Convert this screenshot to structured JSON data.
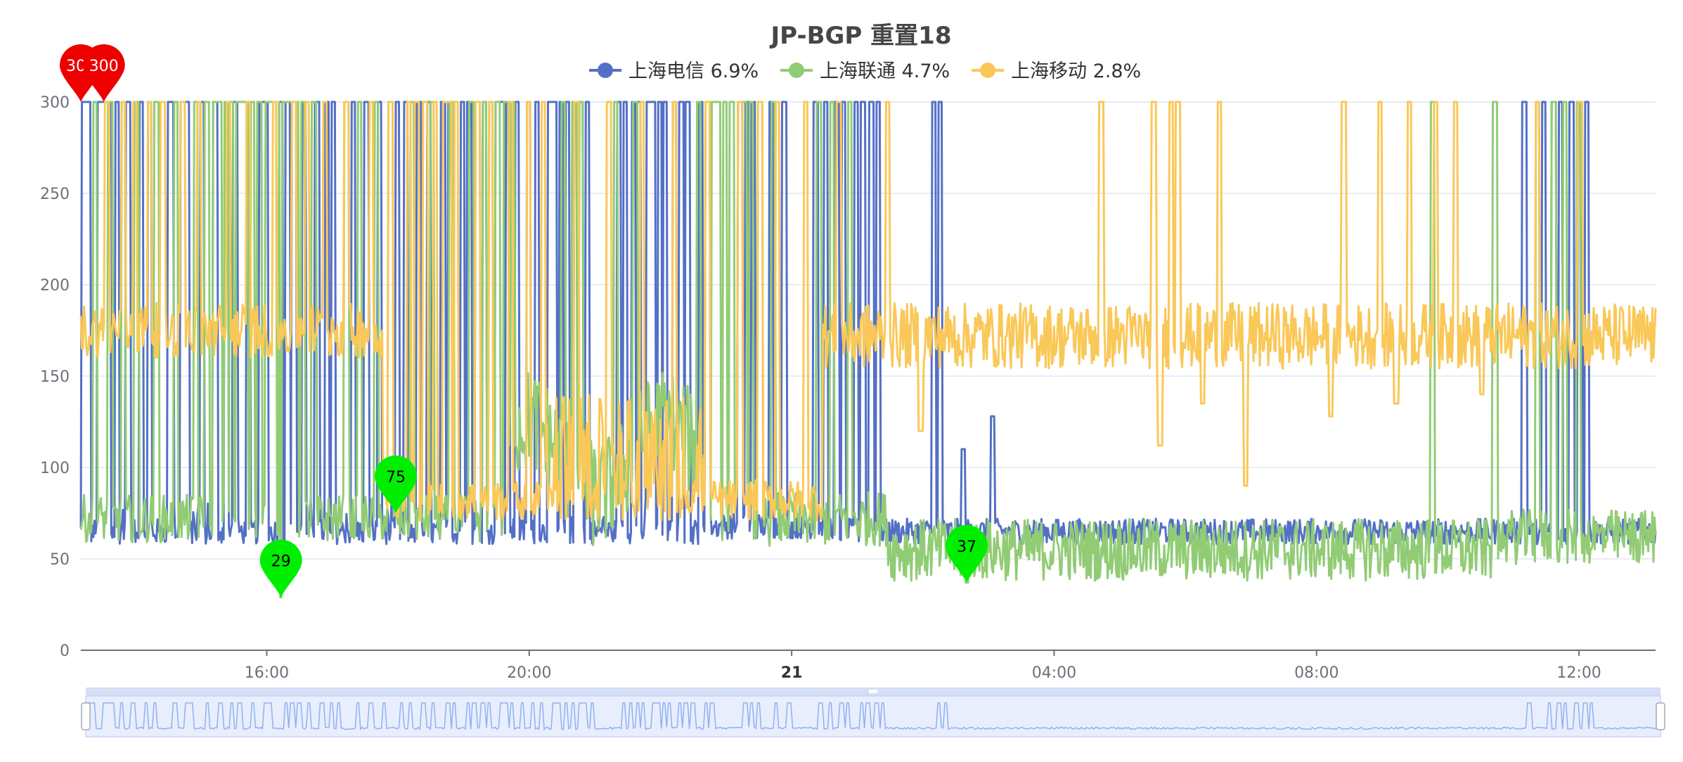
{
  "chart_data": {
    "type": "line",
    "title": "JP-BGP 重置18",
    "legend_position": "top-center",
    "grid": true,
    "y_ticks": [
      "0",
      "50",
      "100",
      "150",
      "200",
      "250",
      "300"
    ],
    "ylim": [
      0,
      300
    ],
    "x_ticks": [
      "16:00",
      "20:00",
      "21",
      "04:00",
      "08:00",
      "12:00"
    ],
    "xlim": [
      "2024-01-20 13:10",
      "2024-01-21 13:10"
    ],
    "datazoom": {
      "shown": true,
      "range_percent": [
        0,
        100
      ]
    },
    "series": [
      {
        "name": "上海电信",
        "loss": "6.9%",
        "color": "#5470c6",
        "baseline": 65,
        "spike_hours": [
          0.05,
          0.12,
          0.28,
          0.32,
          0.38,
          0.42,
          0.55,
          0.72,
          0.92,
          1.05,
          1.35,
          1.38,
          1.55,
          1.62,
          1.85,
          2.05,
          2.22,
          2.35,
          2.55,
          2.75,
          2.82,
          3.05,
          3.15,
          3.25,
          3.4,
          3.6,
          3.75,
          3.85,
          4.15,
          4.35,
          4.55,
          4.82,
          4.95,
          5.15,
          5.3,
          5.52,
          5.62,
          5.82,
          5.92,
          6.05,
          6.15,
          6.35,
          6.42,
          6.5,
          6.65,
          6.82,
          6.95,
          7.15,
          7.22,
          7.32,
          7.42,
          7.55,
          7.62,
          7.72,
          8.2,
          8.3,
          8.42,
          8.5,
          8.65,
          8.72,
          8.82,
          8.9,
          9.05,
          9.15,
          9.25,
          9.45,
          9.55,
          10.05,
          10.15,
          10.25,
          10.52,
          10.72,
          11.2,
          11.35,
          11.52,
          11.62,
          11.82,
          11.92,
          12.05,
          12.15,
          13.0,
          13.1,
          22.0,
          22.3,
          22.45,
          22.55,
          22.72,
          22.85,
          22.95
        ],
        "secondary_bumps": [
          {
            "hour": 13.45,
            "value": 110
          },
          {
            "hour": 13.9,
            "value": 128
          }
        ],
        "markers": [
          {
            "label": "300",
            "type": "max",
            "color": "#ee0000",
            "hour": 0.0,
            "value": 300
          },
          {
            "label": "300",
            "type": "max",
            "color": "#ee0000",
            "hour": 0.35,
            "value": 300
          }
        ]
      },
      {
        "name": "上海联通",
        "loss": "4.7%",
        "color": "#91cc75",
        "baseline": 75,
        "spike_hours": [
          0.22,
          0.45,
          0.65,
          0.85,
          1.15,
          1.45,
          1.75,
          1.92,
          2.05,
          2.12,
          2.22,
          2.3,
          2.4,
          2.45,
          2.52,
          2.62,
          2.72,
          2.85,
          2.9,
          2.95,
          3.05,
          3.12,
          3.2,
          3.28,
          3.38,
          3.55,
          4.05,
          4.25,
          4.5,
          4.72,
          5.05,
          5.35,
          5.65,
          5.95,
          6.15,
          6.25,
          6.35,
          6.48,
          6.58,
          7.35,
          7.52,
          7.62,
          8.15,
          8.45,
          9.42,
          9.55,
          9.65,
          9.72,
          9.82,
          9.92,
          10.05,
          10.12,
          10.22,
          10.35,
          10.55,
          11.25,
          11.45,
          11.72,
          20.6,
          21.55,
          22.2,
          22.45,
          22.62,
          22.82
        ],
        "markers": [
          {
            "label": "29",
            "type": "min",
            "color": "#00ee00",
            "hour": 3.05,
            "value": 29
          },
          {
            "label": "75",
            "type": "min",
            "color": "#00ee00",
            "hour": 4.8,
            "value": 75
          },
          {
            "label": "37",
            "type": "min",
            "color": "#00ee00",
            "hour": 13.5,
            "value": 37
          }
        ]
      },
      {
        "name": "上海移动",
        "loss": "2.8%",
        "color": "#fac858",
        "baseline": 172,
        "spike_hours": [
          0.4,
          0.65,
          0.82,
          1.05,
          1.25,
          1.55,
          1.8,
          2.25,
          2.55,
          2.95,
          3.25,
          3.45,
          3.72,
          4.05,
          4.42,
          4.72,
          5.0,
          5.12,
          5.25,
          5.4,
          5.55,
          5.62,
          5.72,
          6.05,
          6.25,
          6.55,
          6.82,
          7.05,
          7.55,
          8.05,
          8.55,
          9.05,
          9.55,
          10.05,
          10.35,
          10.62,
          11.05,
          11.55,
          12.3,
          15.55,
          16.35,
          16.62,
          16.72,
          17.35,
          19.25,
          19.8,
          20.25,
          20.65,
          20.95,
          21.35,
          22.2,
          22.85
        ],
        "dips": [
          {
            "hour": 12.8,
            "value": 120
          },
          {
            "hour": 16.45,
            "value": 112
          },
          {
            "hour": 17.1,
            "value": 135
          },
          {
            "hour": 17.75,
            "value": 90
          },
          {
            "hour": 19.05,
            "value": 128
          },
          {
            "hour": 20.05,
            "value": 135
          },
          {
            "hour": 21.35,
            "value": 140
          }
        ],
        "low_regime_hours": [
          4.6,
          11.3
        ]
      }
    ]
  }
}
